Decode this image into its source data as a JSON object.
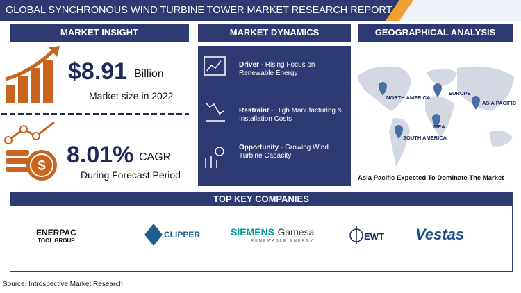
{
  "header": {
    "title": "GLOBAL SYNCHRONOUS WIND TURBINE TOWER MARKET RESEARCH REPORT"
  },
  "market_insight": {
    "heading": "MARKET INSIGHT",
    "market_size": {
      "value": "$8.91",
      "unit": "Billion",
      "caption": "Market size in 2022"
    },
    "cagr": {
      "value": "8.01%",
      "unit": "CAGR",
      "caption": "During Forecast Period"
    }
  },
  "market_dynamics": {
    "heading": "MARKET DYNAMICS",
    "items": [
      {
        "label": "Driver",
        "text": "- Rising Focus on Renewable Energy"
      },
      {
        "label": "Restraint",
        "text": "- High Manufacturing & Installation Costs"
      },
      {
        "label": "Opportunity",
        "text": "- Growing Wind Turbine Capacity"
      }
    ]
  },
  "geographical_analysis": {
    "heading": "GEOGRAPHICAL ANALYSIS",
    "regions": [
      "NORTH AMERICA",
      "EUROPE",
      "ASIA PACIFIC",
      "SOUTH AMERICA",
      "MEA"
    ],
    "caption": "Asia Pacific Expected To Dominate The Market"
  },
  "top_key_companies": {
    "heading": "TOP KEY COMPANIES",
    "companies": [
      {
        "name": "ENERPAC",
        "sub": "TOOL GROUP"
      },
      {
        "name": "CLIPPER"
      },
      {
        "name": "SIEMENS",
        "name2": "Gamesa",
        "sub": "RENEWABLE ENERGY"
      },
      {
        "name": "EWT"
      },
      {
        "name": "Vestas"
      }
    ]
  },
  "source": "Source: Introspective Market Research"
}
